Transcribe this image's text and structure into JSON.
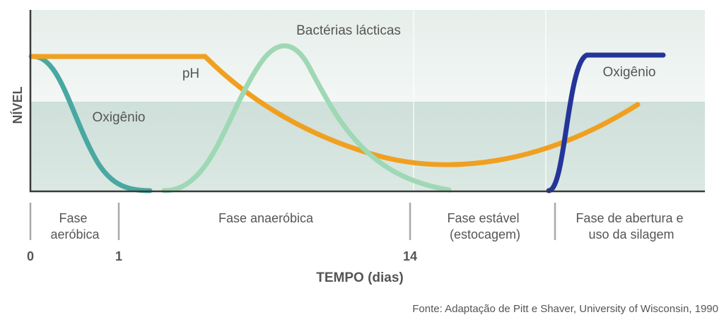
{
  "chart_data": {
    "type": "line",
    "title": "",
    "ylabel": "NÍVEL",
    "xlabel": "TEMPO (dias)",
    "x_ticks": [
      {
        "value": 0,
        "label": "0"
      },
      {
        "value": 1,
        "label": "1"
      },
      {
        "value": 14,
        "label": "14"
      }
    ],
    "phases": [
      {
        "label_lines": [
          "Fase",
          "aeróbica"
        ]
      },
      {
        "label_lines": [
          "Fase anaeróbica"
        ]
      },
      {
        "label_lines": [
          "Fase estável",
          "(estocagem)"
        ]
      },
      {
        "label_lines": [
          "Fase de abertura e",
          "uso da silagem"
        ]
      }
    ],
    "series": [
      {
        "name": "Oxigênio",
        "color": "#4aa8a1",
        "key": "oxygen_initial"
      },
      {
        "name": "pH",
        "color": "#f0a020",
        "key": "ph"
      },
      {
        "name": "Bactérias lácticas",
        "color": "#9fd8b4",
        "key": "lactic_bacteria"
      },
      {
        "name": "Oxigênio",
        "color": "#24359a",
        "key": "oxygen_opening"
      }
    ]
  },
  "source": "Fonte: Adaptação de Pitt e Shaver, University of Wisconsin, 1990",
  "colors": {
    "plot_band_top": "#e3ece8",
    "plot_band_bottom": "#d2e1db",
    "divider": "#bdbdbd",
    "axis": "#3a3a3a"
  }
}
